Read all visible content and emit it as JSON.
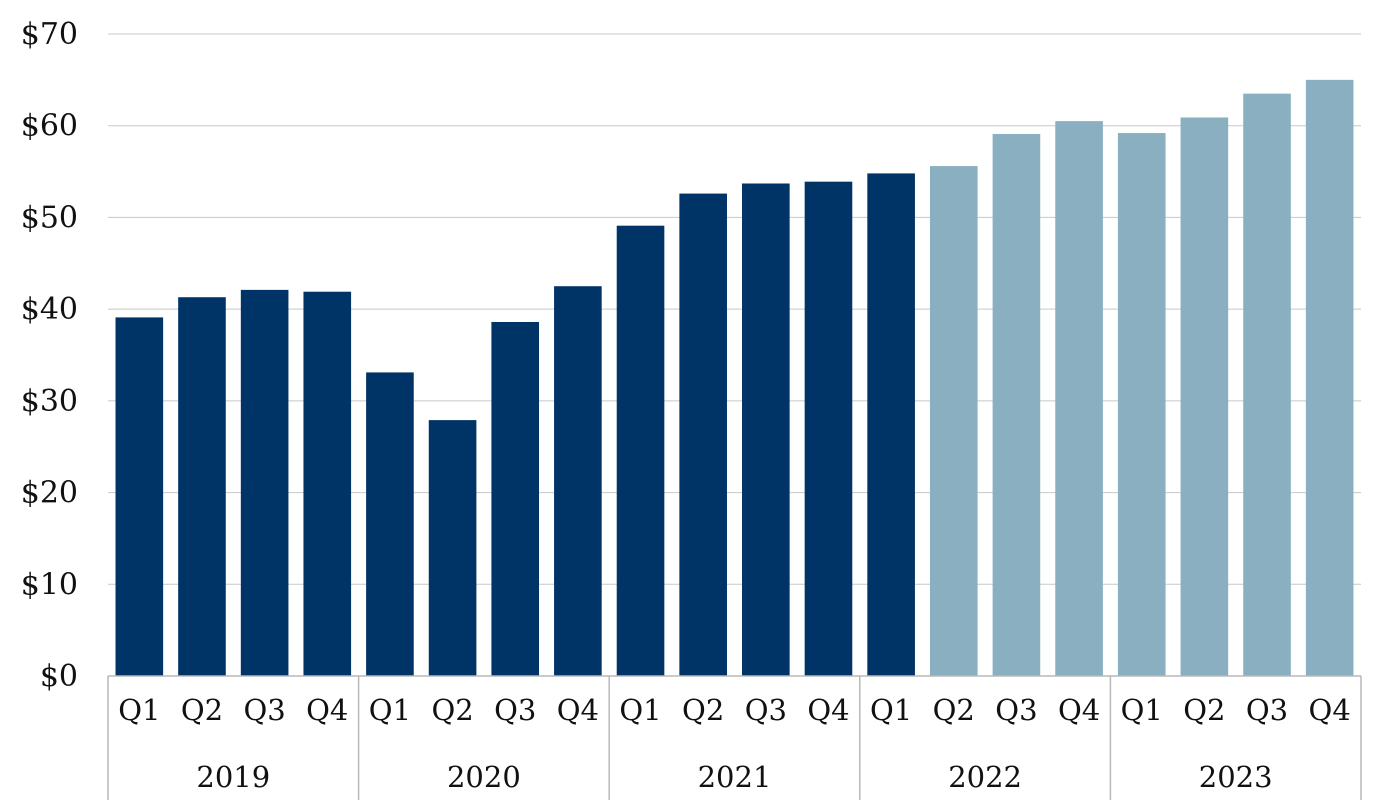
{
  "chart_data": {
    "type": "bar",
    "title": "",
    "xlabel": "",
    "ylabel": "",
    "ylim": [
      0,
      70
    ],
    "yticks": [
      0,
      10,
      20,
      30,
      40,
      50,
      60,
      70
    ],
    "ytick_labels": [
      "$0",
      "$10",
      "$20",
      "$30",
      "$40",
      "$50",
      "$60",
      "$70"
    ],
    "grid": "horizontal",
    "legend": "none",
    "colors": {
      "actual": "#003366",
      "forecast": "#8aafc1",
      "grid": "#c8c8c8",
      "axis": "#b8b8b8"
    },
    "years": [
      "2019",
      "2020",
      "2021",
      "2022",
      "2023"
    ],
    "categories": [
      "Q1",
      "Q2",
      "Q3",
      "Q4",
      "Q1",
      "Q2",
      "Q3",
      "Q4",
      "Q1",
      "Q2",
      "Q3",
      "Q4",
      "Q1",
      "Q2",
      "Q3",
      "Q4",
      "Q1",
      "Q2",
      "Q3",
      "Q4"
    ],
    "values": [
      39.1,
      41.3,
      42.1,
      41.9,
      33.1,
      27.9,
      38.6,
      42.5,
      49.1,
      52.6,
      53.7,
      53.9,
      54.8,
      55.6,
      59.1,
      60.5,
      59.2,
      60.9,
      63.5,
      65.0
    ],
    "bar_styles": [
      "actual",
      "actual",
      "actual",
      "actual",
      "actual",
      "actual",
      "actual",
      "actual",
      "actual",
      "actual",
      "actual",
      "actual",
      "actual",
      "forecast",
      "forecast",
      "forecast",
      "forecast",
      "forecast",
      "forecast",
      "forecast"
    ]
  }
}
